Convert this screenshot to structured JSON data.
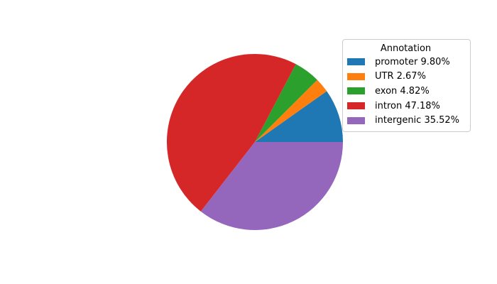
{
  "figure": {
    "background": "#ffffff"
  },
  "chart_data": {
    "type": "pie",
    "title": "",
    "legend_title": "Annotation",
    "legend_position": "upper right",
    "labels": [
      "promoter",
      "UTR",
      "exon",
      "intron",
      "intergenic"
    ],
    "values": [
      9.8,
      2.67,
      4.82,
      47.18,
      35.52
    ],
    "legend_labels": [
      "promoter 9.80%",
      "UTR 2.67%",
      "exon 4.82%",
      "intron 47.18%",
      "intergenic 35.52%"
    ],
    "colors": [
      "#1f77b4",
      "#ff7f0e",
      "#2ca02c",
      "#d62728",
      "#9467bd"
    ],
    "start_angle": 0,
    "direction": "counterclockwise"
  }
}
